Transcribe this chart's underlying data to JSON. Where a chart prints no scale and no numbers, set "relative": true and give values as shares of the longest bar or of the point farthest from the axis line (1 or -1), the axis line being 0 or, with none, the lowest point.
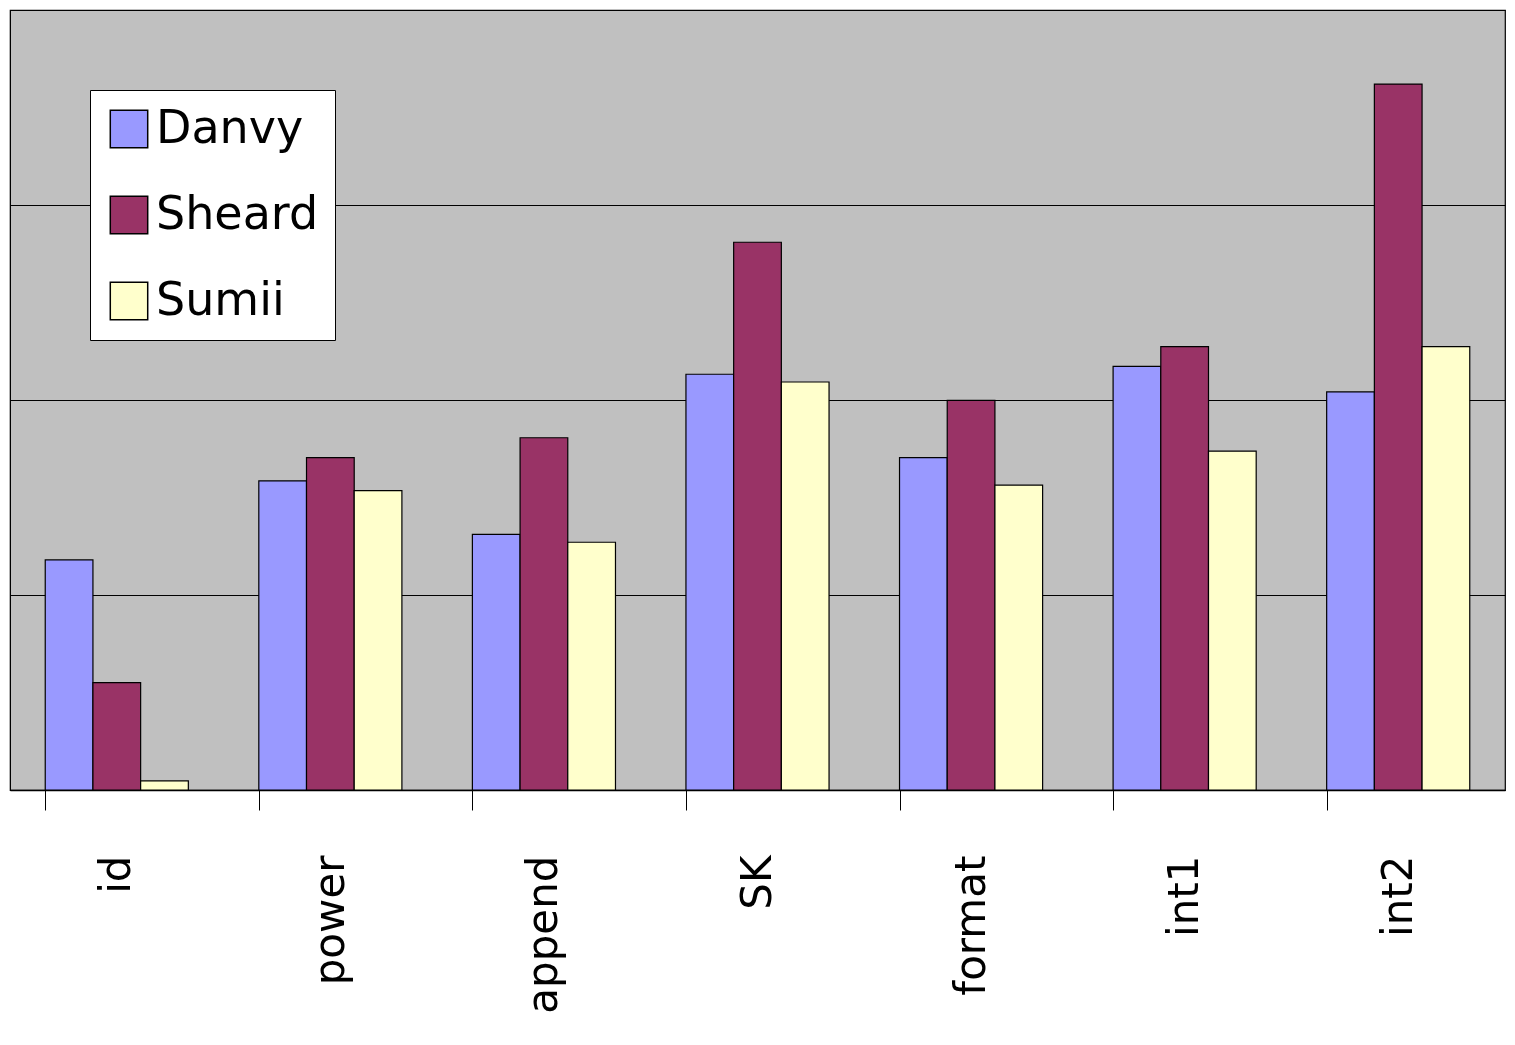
{
  "chart_data": {
    "type": "bar",
    "relative": true,
    "categories": [
      "id",
      "power",
      "append",
      "SK",
      "format",
      "int1",
      "int2"
    ],
    "series": [
      {
        "name": "Danvy",
        "color": "#9999ff",
        "values": [
          0.326,
          0.438,
          0.362,
          0.589,
          0.471,
          0.6,
          0.564
        ]
      },
      {
        "name": "Sheard",
        "color": "#993366",
        "values": [
          0.152,
          0.471,
          0.499,
          0.776,
          0.552,
          0.628,
          1.0
        ]
      },
      {
        "name": "Sumii",
        "color": "#ffffcc",
        "values": [
          0.013,
          0.424,
          0.351,
          0.578,
          0.432,
          0.48,
          0.628
        ]
      }
    ],
    "grid": "y",
    "legend": "top left"
  }
}
